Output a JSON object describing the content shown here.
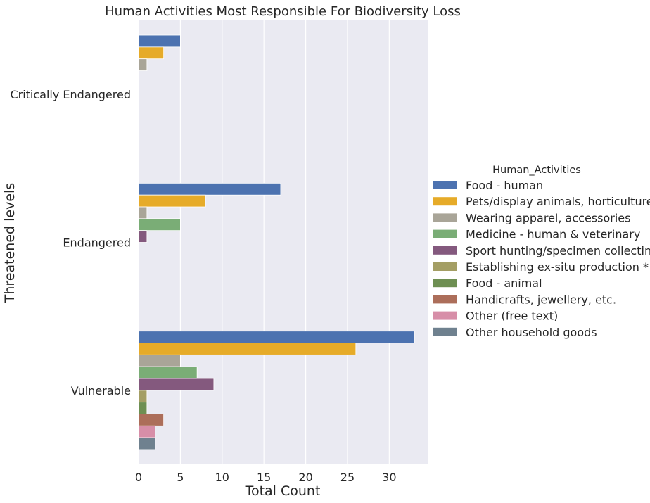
{
  "chart_data": {
    "type": "bar",
    "orientation": "horizontal",
    "title": "Human Activities Most Responsible For Biodiversity Loss",
    "xlabel": "Total Count",
    "ylabel": "Threatened levels",
    "xlim": [
      0,
      34.6
    ],
    "xticks": [
      0,
      5,
      10,
      15,
      20,
      25,
      30
    ],
    "grid": true,
    "legend": {
      "title": "Human_Activities",
      "position": "right"
    },
    "categories": [
      "Critically Endangered",
      "Endangered",
      "Vulnerable"
    ],
    "series": [
      {
        "name": "Food - human",
        "color": "#4c72b0",
        "values": [
          5,
          17,
          33
        ]
      },
      {
        "name": "Pets/display animals, horticulture",
        "color": "#e6ab29",
        "values": [
          3,
          8,
          26
        ]
      },
      {
        "name": "Wearing apparel, accessories",
        "color": "#a9a598",
        "values": [
          1,
          1,
          5
        ]
      },
      {
        "name": "Medicine - human & veterinary",
        "color": "#7aad76",
        "values": [
          null,
          5,
          7
        ]
      },
      {
        "name": "Sport hunting/specimen collecting",
        "color": "#84597e",
        "values": [
          null,
          1,
          9
        ]
      },
      {
        "name": "Establishing ex-situ production *",
        "color": "#a49e64",
        "values": [
          null,
          null,
          1
        ]
      },
      {
        "name": "Food - animal",
        "color": "#6e8f52",
        "values": [
          null,
          null,
          1
        ]
      },
      {
        "name": "Handicrafts, jewellery, etc.",
        "color": "#ac6e5a",
        "values": [
          null,
          null,
          3
        ]
      },
      {
        "name": "Other (free text)",
        "color": "#d78ea8",
        "values": [
          null,
          null,
          2
        ]
      },
      {
        "name": "Other household goods",
        "color": "#6f818f",
        "values": [
          null,
          null,
          2
        ]
      }
    ]
  }
}
